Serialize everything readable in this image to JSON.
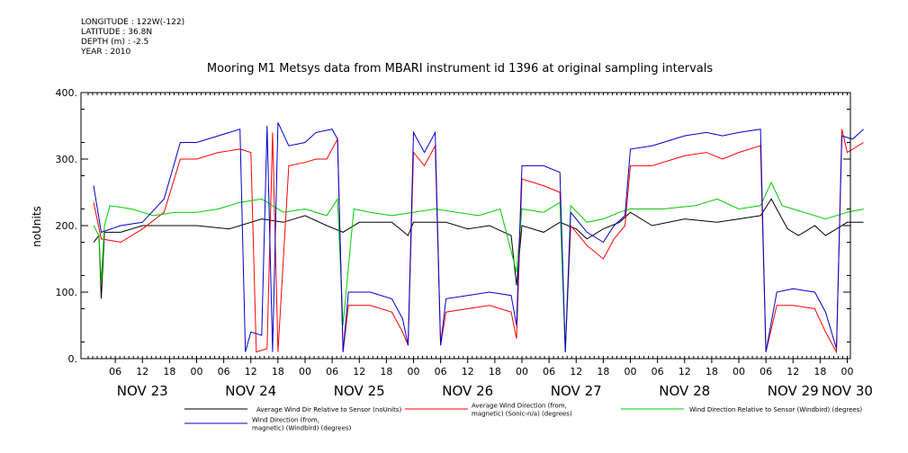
{
  "meta": {
    "longitude": "LONGITUDE : 122W(-122)",
    "latitude": "LATITUDE : 36.8N",
    "depth": "DEPTH (m) : -2.5",
    "year": "YEAR : 2010"
  },
  "chart_data": {
    "type": "line",
    "title": "Mooring M1 Metsys data from MBARI instrument id 1396 at original sampling intervals",
    "ylabel": "noUnits",
    "xlabel": "",
    "ylim": [
      0,
      400
    ],
    "y_ticks": [
      "0.",
      "100.",
      "200.",
      "300.",
      "400."
    ],
    "x_hour_ticks": [
      {
        "t": 0.25,
        "label": "06"
      },
      {
        "t": 0.5,
        "label": "12"
      },
      {
        "t": 0.75,
        "label": "18"
      },
      {
        "t": 1.0,
        "label": "00"
      },
      {
        "t": 1.25,
        "label": "06"
      },
      {
        "t": 1.5,
        "label": "12"
      },
      {
        "t": 1.75,
        "label": "18"
      },
      {
        "t": 2.0,
        "label": "00"
      },
      {
        "t": 2.25,
        "label": "06"
      },
      {
        "t": 2.5,
        "label": "12"
      },
      {
        "t": 2.75,
        "label": "18"
      },
      {
        "t": 3.0,
        "label": "00"
      },
      {
        "t": 3.25,
        "label": "06"
      },
      {
        "t": 3.5,
        "label": "12"
      },
      {
        "t": 3.75,
        "label": "18"
      },
      {
        "t": 4.0,
        "label": "00"
      },
      {
        "t": 4.25,
        "label": "06"
      },
      {
        "t": 4.5,
        "label": "12"
      },
      {
        "t": 4.75,
        "label": "18"
      },
      {
        "t": 5.0,
        "label": "00"
      },
      {
        "t": 5.25,
        "label": "06"
      },
      {
        "t": 5.5,
        "label": "12"
      },
      {
        "t": 5.75,
        "label": "18"
      },
      {
        "t": 6.0,
        "label": "00"
      },
      {
        "t": 6.25,
        "label": "06"
      },
      {
        "t": 6.5,
        "label": "12"
      },
      {
        "t": 6.75,
        "label": "18"
      },
      {
        "t": 7.0,
        "label": "00"
      }
    ],
    "x_day_labels": [
      {
        "t": 0.5,
        "label": "NOV 23"
      },
      {
        "t": 1.5,
        "label": "NOV 24"
      },
      {
        "t": 2.5,
        "label": "NOV 25"
      },
      {
        "t": 3.5,
        "label": "NOV 26"
      },
      {
        "t": 4.5,
        "label": "NOV 27"
      },
      {
        "t": 5.5,
        "label": "NOV 28"
      },
      {
        "t": 6.5,
        "label": "NOV 29"
      },
      {
        "t": 7.0,
        "label": "NOV 30"
      }
    ],
    "x_axis_unit": "days since Nov 23 00:00 (tick positions)",
    "series": [
      {
        "name": "Average Wind Dir Relative to Sensor (noUnits)",
        "color": "#000000",
        "points": [
          [
            0.05,
            175
          ],
          [
            0.1,
            185
          ],
          [
            0.12,
            90
          ],
          [
            0.15,
            190
          ],
          [
            0.3,
            190
          ],
          [
            0.5,
            200
          ],
          [
            1.0,
            200
          ],
          [
            1.3,
            195
          ],
          [
            1.6,
            210
          ],
          [
            1.8,
            205
          ],
          [
            2.0,
            215
          ],
          [
            2.2,
            200
          ],
          [
            2.35,
            190
          ],
          [
            2.5,
            205
          ],
          [
            2.8,
            205
          ],
          [
            2.95,
            185
          ],
          [
            3.0,
            205
          ],
          [
            3.3,
            205
          ],
          [
            3.5,
            195
          ],
          [
            3.7,
            200
          ],
          [
            3.9,
            185
          ],
          [
            3.95,
            110
          ],
          [
            4.0,
            200
          ],
          [
            4.2,
            190
          ],
          [
            4.35,
            205
          ],
          [
            4.5,
            195
          ],
          [
            4.6,
            180
          ],
          [
            4.75,
            195
          ],
          [
            4.9,
            205
          ],
          [
            5.0,
            220
          ],
          [
            5.2,
            200
          ],
          [
            5.5,
            210
          ],
          [
            5.8,
            205
          ],
          [
            6.0,
            210
          ],
          [
            6.2,
            215
          ],
          [
            6.3,
            240
          ],
          [
            6.45,
            195
          ],
          [
            6.55,
            185
          ],
          [
            6.7,
            200
          ],
          [
            6.8,
            185
          ],
          [
            7.0,
            205
          ],
          [
            7.15,
            205
          ]
        ]
      },
      {
        "name": "Average Wind Direction (from, magnetic) (Sonic-n/a) (degrees)",
        "color": "#ff0000",
        "points": [
          [
            0.05,
            235
          ],
          [
            0.12,
            180
          ],
          [
            0.3,
            175
          ],
          [
            0.5,
            195
          ],
          [
            0.7,
            220
          ],
          [
            0.85,
            300
          ],
          [
            1.0,
            300
          ],
          [
            1.2,
            310
          ],
          [
            1.4,
            315
          ],
          [
            1.5,
            310
          ],
          [
            1.55,
            10
          ],
          [
            1.65,
            15
          ],
          [
            1.7,
            340
          ],
          [
            1.75,
            10
          ],
          [
            1.85,
            290
          ],
          [
            2.0,
            295
          ],
          [
            2.1,
            300
          ],
          [
            2.2,
            300
          ],
          [
            2.3,
            330
          ],
          [
            2.35,
            10
          ],
          [
            2.4,
            80
          ],
          [
            2.6,
            80
          ],
          [
            2.8,
            70
          ],
          [
            2.9,
            40
          ],
          [
            2.95,
            20
          ],
          [
            3.0,
            310
          ],
          [
            3.1,
            290
          ],
          [
            3.2,
            320
          ],
          [
            3.25,
            20
          ],
          [
            3.3,
            70
          ],
          [
            3.5,
            75
          ],
          [
            3.7,
            80
          ],
          [
            3.9,
            70
          ],
          [
            3.95,
            30
          ],
          [
            4.0,
            270
          ],
          [
            4.2,
            260
          ],
          [
            4.35,
            250
          ],
          [
            4.4,
            10
          ],
          [
            4.45,
            200
          ],
          [
            4.6,
            170
          ],
          [
            4.75,
            150
          ],
          [
            4.85,
            180
          ],
          [
            4.95,
            200
          ],
          [
            5.0,
            290
          ],
          [
            5.2,
            290
          ],
          [
            5.5,
            305
          ],
          [
            5.7,
            310
          ],
          [
            5.85,
            300
          ],
          [
            6.0,
            310
          ],
          [
            6.2,
            320
          ],
          [
            6.25,
            10
          ],
          [
            6.35,
            80
          ],
          [
            6.5,
            80
          ],
          [
            6.7,
            75
          ],
          [
            6.8,
            40
          ],
          [
            6.9,
            10
          ],
          [
            6.95,
            345
          ],
          [
            7.0,
            310
          ],
          [
            7.15,
            325
          ]
        ]
      },
      {
        "name": "Wind Direction Relative to Sensor (Windbird) (degrees)",
        "color": "#00cc00",
        "points": [
          [
            0.05,
            200
          ],
          [
            0.1,
            185
          ],
          [
            0.12,
            115
          ],
          [
            0.15,
            200
          ],
          [
            0.2,
            230
          ],
          [
            0.4,
            225
          ],
          [
            0.6,
            215
          ],
          [
            0.8,
            220
          ],
          [
            1.0,
            220
          ],
          [
            1.2,
            225
          ],
          [
            1.4,
            235
          ],
          [
            1.6,
            240
          ],
          [
            1.8,
            220
          ],
          [
            2.0,
            225
          ],
          [
            2.2,
            215
          ],
          [
            2.3,
            240
          ],
          [
            2.35,
            50
          ],
          [
            2.45,
            225
          ],
          [
            2.6,
            220
          ],
          [
            2.8,
            215
          ],
          [
            3.0,
            220
          ],
          [
            3.2,
            225
          ],
          [
            3.4,
            220
          ],
          [
            3.6,
            215
          ],
          [
            3.8,
            225
          ],
          [
            3.95,
            130
          ],
          [
            4.0,
            225
          ],
          [
            4.2,
            220
          ],
          [
            4.35,
            235
          ],
          [
            4.4,
            10
          ],
          [
            4.45,
            230
          ],
          [
            4.6,
            205
          ],
          [
            4.75,
            210
          ],
          [
            4.9,
            220
          ],
          [
            5.0,
            225
          ],
          [
            5.3,
            225
          ],
          [
            5.6,
            230
          ],
          [
            5.8,
            240
          ],
          [
            6.0,
            225
          ],
          [
            6.2,
            230
          ],
          [
            6.3,
            265
          ],
          [
            6.4,
            230
          ],
          [
            6.6,
            220
          ],
          [
            6.8,
            210
          ],
          [
            7.0,
            220
          ],
          [
            7.15,
            225
          ]
        ]
      },
      {
        "name": "Wind Direction (from, magnetic) (Windbird) (degrees)",
        "color": "#0000cc",
        "points": [
          [
            0.05,
            260
          ],
          [
            0.12,
            190
          ],
          [
            0.3,
            200
          ],
          [
            0.5,
            205
          ],
          [
            0.7,
            240
          ],
          [
            0.85,
            325
          ],
          [
            1.0,
            325
          ],
          [
            1.2,
            335
          ],
          [
            1.4,
            345
          ],
          [
            1.45,
            10
          ],
          [
            1.5,
            40
          ],
          [
            1.6,
            35
          ],
          [
            1.65,
            350
          ],
          [
            1.7,
            10
          ],
          [
            1.75,
            355
          ],
          [
            1.85,
            320
          ],
          [
            2.0,
            325
          ],
          [
            2.1,
            340
          ],
          [
            2.25,
            345
          ],
          [
            2.3,
            330
          ],
          [
            2.35,
            10
          ],
          [
            2.4,
            100
          ],
          [
            2.6,
            100
          ],
          [
            2.8,
            90
          ],
          [
            2.9,
            60
          ],
          [
            2.95,
            20
          ],
          [
            3.0,
            340
          ],
          [
            3.1,
            310
          ],
          [
            3.2,
            340
          ],
          [
            3.25,
            20
          ],
          [
            3.3,
            90
          ],
          [
            3.5,
            95
          ],
          [
            3.7,
            100
          ],
          [
            3.9,
            95
          ],
          [
            3.95,
            50
          ],
          [
            4.0,
            290
          ],
          [
            4.2,
            290
          ],
          [
            4.35,
            280
          ],
          [
            4.4,
            10
          ],
          [
            4.45,
            220
          ],
          [
            4.6,
            190
          ],
          [
            4.75,
            175
          ],
          [
            4.85,
            200
          ],
          [
            4.95,
            215
          ],
          [
            5.0,
            315
          ],
          [
            5.2,
            320
          ],
          [
            5.5,
            335
          ],
          [
            5.7,
            340
          ],
          [
            5.85,
            335
          ],
          [
            6.0,
            340
          ],
          [
            6.2,
            345
          ],
          [
            6.25,
            10
          ],
          [
            6.35,
            100
          ],
          [
            6.5,
            105
          ],
          [
            6.7,
            100
          ],
          [
            6.8,
            70
          ],
          [
            6.9,
            15
          ],
          [
            6.95,
            335
          ],
          [
            7.05,
            330
          ],
          [
            7.15,
            345
          ]
        ]
      }
    ],
    "legend": [
      {
        "lines": [
          "Average Wind Dir Relative to Sensor (noUnits)"
        ],
        "color": "#000000"
      },
      {
        "lines": [
          "Average Wind Direction (from,",
          "magnetic) (Sonic-n/a) (degrees)"
        ],
        "color": "#ff0000"
      },
      {
        "lines": [
          "Wind Direction Relative to Sensor (Windbird) (degrees)"
        ],
        "color": "#00cc00"
      },
      {
        "lines": [
          "Wind Direction (from,",
          "magnetic) (Windbird) (degrees)"
        ],
        "color": "#0000cc"
      }
    ]
  }
}
